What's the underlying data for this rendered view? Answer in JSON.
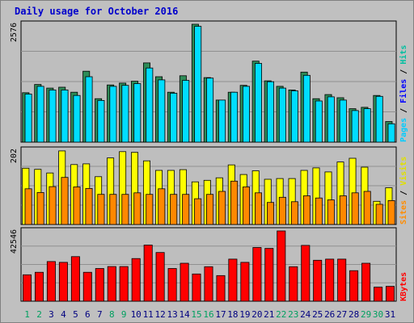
{
  "chart_data": {
    "type": "bar",
    "title": "Daily usage for October 2016",
    "categories": [
      "1",
      "2",
      "3",
      "4",
      "5",
      "6",
      "7",
      "8",
      "9",
      "10",
      "11",
      "12",
      "13",
      "14",
      "15",
      "16",
      "17",
      "18",
      "19",
      "20",
      "21",
      "22",
      "23",
      "24",
      "25",
      "26",
      "27",
      "28",
      "29",
      "30",
      "31"
    ],
    "weekend_days": [
      "1",
      "2",
      "8",
      "9",
      "15",
      "16",
      "22",
      "23",
      "29",
      "30"
    ],
    "panels": [
      {
        "id": "top",
        "ymax": 2576,
        "ymax_label": "2576",
        "series": [
          {
            "name": "Pages",
            "color": "#00bcd4",
            "values": [
              0,
              0,
              0,
              0,
              0,
              0,
              0,
              0,
              0,
              0,
              0,
              0,
              0,
              0,
              0,
              0,
              0,
              0,
              0,
              0,
              0,
              0,
              0,
              0,
              0,
              0,
              0,
              0,
              0,
              0,
              0
            ]
          },
          {
            "name": "Files",
            "color": "#00cc66",
            "values": [
              0,
              0,
              0,
              0,
              0,
              0,
              0,
              0,
              0,
              0,
              0,
              0,
              0,
              0,
              0,
              0,
              0,
              0,
              0,
              0,
              0,
              0,
              0,
              0,
              0,
              0,
              0,
              0,
              0,
              0,
              0
            ]
          },
          {
            "name": "Hits",
            "color": "#2e8b57",
            "values": [
              1080,
              1260,
              1180,
              1200,
              1090,
              1550,
              950,
              1250,
              1290,
              1330,
              1730,
              1430,
              1090,
              1450,
              2576,
              1410,
              920,
              1090,
              1240,
              1770,
              1340,
              1220,
              1140,
              1530,
              950,
              1040,
              970,
              730,
              760,
              1020,
              450
            ]
          },
          {
            "name": "Files",
            "color": "#00ddff",
            "values": [
              1050,
              1220,
              1140,
              1140,
              1020,
              1430,
              910,
              1220,
              1240,
              1280,
              1620,
              1360,
              1070,
              1350,
              2530,
              1400,
              920,
              1090,
              1220,
              1720,
              1320,
              1180,
              1120,
              1460,
              900,
              990,
              920,
              690,
              730,
              1000,
              400
            ]
          }
        ],
        "labels": [
          {
            "text": "Pages",
            "color": "#00ccff"
          },
          {
            "text": "Files",
            "color": "#0000ff"
          },
          {
            "text": "Hits",
            "color": "#00bfa0"
          }
        ]
      },
      {
        "id": "mid",
        "ymax": 202,
        "ymax_label": "202",
        "series": [
          {
            "name": "Visits",
            "color": "#ffff00",
            "values": [
              153,
              150,
              140,
              200,
              163,
              165,
              130,
              181,
              198,
              196,
              173,
              147,
              147,
              149,
              116,
              120,
              127,
              162,
              136,
              146,
              123,
              125,
              125,
              147,
              154,
              143,
              170,
              180,
              156,
              63,
              100
            ]
          },
          {
            "name": "Sites",
            "color": "#ff8800",
            "values": [
              97,
              87,
              103,
              128,
              102,
              98,
              82,
              82,
              82,
              86,
              82,
              97,
              82,
              82,
              70,
              82,
              90,
              118,
              102,
              86,
              60,
              74,
              62,
              78,
              72,
              67,
              78,
              86,
              90,
              55,
              65
            ]
          }
        ],
        "labels": [
          {
            "text": "Sites",
            "color": "#ff8c00"
          },
          {
            "text": "Visits",
            "color": "#e0e000"
          }
        ]
      },
      {
        "id": "bottom",
        "ymax": 42546,
        "ymax_label": "42546",
        "series": [
          {
            "name": "KBytes",
            "color": "#ff0000",
            "values": [
              16000,
              17500,
              24000,
              23500,
              27000,
              17500,
              19800,
              21000,
              21000,
              25800,
              34000,
              29500,
              19800,
              23000,
              16500,
              20900,
              15500,
              25500,
              23500,
              32500,
              32000,
              42546,
              20900,
              33800,
              24800,
              25500,
              25500,
              18500,
              23000,
              8500,
              9000
            ]
          }
        ],
        "labels": [
          {
            "text": "KBytes",
            "color": "#ff0000"
          }
        ]
      }
    ]
  },
  "colors": {
    "title_text": "#0000cc",
    "weekday_label": "#000080",
    "weekend_label": "#00a060",
    "plot_bg": "#bebebe",
    "grid": "#909090"
  }
}
